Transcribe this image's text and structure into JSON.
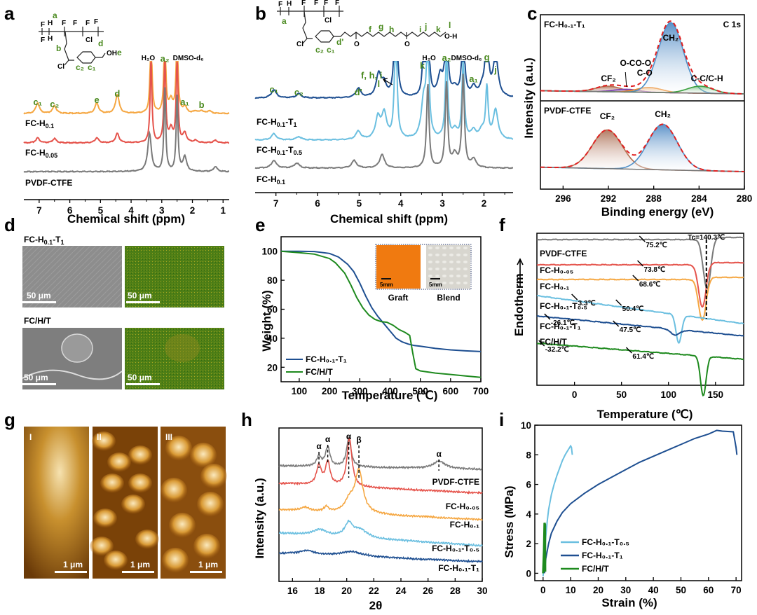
{
  "panels": {
    "a": {
      "letter": "a"
    },
    "b": {
      "letter": "b"
    },
    "c": {
      "letter": "c"
    },
    "d": {
      "letter": "d"
    },
    "e": {
      "letter": "e"
    },
    "f": {
      "letter": "f"
    },
    "g": {
      "letter": "g"
    },
    "h": {
      "letter": "h"
    },
    "i": {
      "letter": "i"
    }
  },
  "colors": {
    "gray": "#7a7a7a",
    "red": "#e5534b",
    "orange": "#f5a742",
    "lightblue": "#6bbfe0",
    "darkblue": "#1e4f91",
    "green": "#1e8a1e",
    "fit_red": "#e02020",
    "label_green": "#4a8a1f"
  },
  "chart_data": [
    {
      "id": "a",
      "type": "line",
      "title": "",
      "xlabel": "Chemical shift (ppm)",
      "ylabel": "",
      "xlim": [
        7.5,
        0.8
      ],
      "xticks": [
        "7",
        "6",
        "5",
        "4",
        "3",
        "2",
        "1"
      ],
      "series": [
        {
          "name": "FC-H0.1",
          "label": "FC-H",
          "sub": "0.1",
          "color": "orange",
          "peaks": [
            [
              7.05,
              0.25
            ],
            [
              6.5,
              0.18
            ],
            [
              5.12,
              0.25
            ],
            [
              4.45,
              0.45
            ],
            [
              3.35,
              2.0
            ],
            [
              2.9,
              2.0
            ],
            [
              2.7,
              0.3
            ],
            [
              2.5,
              2.0
            ],
            [
              2.25,
              0.15
            ],
            [
              1.9,
              0.05
            ],
            [
              1.7,
              0.06
            ],
            [
              1.45,
              0.06
            ]
          ]
        },
        {
          "name": "FC-H0.05",
          "label": "FC-H",
          "sub": "0.05",
          "color": "red",
          "peaks": [
            [
              7.05,
              0.12
            ],
            [
              6.5,
              0.1
            ],
            [
              5.12,
              0.12
            ],
            [
              4.45,
              0.22
            ],
            [
              3.35,
              2.0
            ],
            [
              2.9,
              2.0
            ],
            [
              2.7,
              0.3
            ],
            [
              2.5,
              2.0
            ],
            [
              2.25,
              0.22
            ],
            [
              1.9,
              0.05
            ],
            [
              1.25,
              0.06
            ]
          ]
        },
        {
          "name": "PVDF-CTFE",
          "label": "PVDF-CTFE",
          "sub": "",
          "color": "gray",
          "peaks": [
            [
              3.4,
              0.9
            ],
            [
              2.9,
              2.0
            ],
            [
              2.5,
              1.8
            ],
            [
              2.25,
              0.35
            ],
            [
              1.25,
              0.12
            ]
          ]
        }
      ],
      "annotations": [
        "c1",
        "c2",
        "e",
        "d",
        "H2O",
        "a2",
        "DMSO-d6",
        "a1",
        "b"
      ]
    },
    {
      "id": "b",
      "type": "line",
      "title": "",
      "xlabel": "Chemical shift (ppm)",
      "ylabel": "",
      "xlim": [
        7.5,
        1.3
      ],
      "xticks": [
        "7",
        "6",
        "5",
        "4",
        "3",
        "2"
      ],
      "series": [
        {
          "name": "FC-H0.1-T1",
          "label": "FC-H",
          "sub": "0.1",
          "tail": "-T",
          "tailsub": "1",
          "color": "darkblue",
          "peaks": [
            [
              7.05,
              0.2
            ],
            [
              6.45,
              0.1
            ],
            [
              5.02,
              0.22
            ],
            [
              4.53,
              0.55
            ],
            [
              4.4,
              0.3
            ],
            [
              4.12,
              3.0
            ],
            [
              3.45,
              1.1
            ],
            [
              3.35,
              2.2
            ],
            [
              3.05,
              0.5
            ],
            [
              2.9,
              2.2
            ],
            [
              2.7,
              0.2
            ],
            [
              2.5,
              2.0
            ],
            [
              2.25,
              0.22
            ],
            [
              2.05,
              0.2
            ],
            [
              1.93,
              2.2
            ],
            [
              1.72,
              1.0
            ]
          ]
        },
        {
          "name": "FC-H0.1-T0.5",
          "label": "FC-H",
          "sub": "0.1",
          "tail": "-T",
          "tailsub": "0.5",
          "color": "lightblue",
          "peaks": [
            [
              7.05,
              0.15
            ],
            [
              6.45,
              0.08
            ],
            [
              5.02,
              0.2
            ],
            [
              4.55,
              0.5
            ],
            [
              4.4,
              0.6
            ],
            [
              4.12,
              2.8
            ],
            [
              3.45,
              0.9
            ],
            [
              3.35,
              2.5
            ],
            [
              2.9,
              2.0
            ],
            [
              2.7,
              0.2
            ],
            [
              2.5,
              1.8
            ],
            [
              2.25,
              0.2
            ],
            [
              2.05,
              0.2
            ],
            [
              1.93,
              1.2
            ],
            [
              1.72,
              0.7
            ]
          ]
        },
        {
          "name": "FC-H0.1",
          "label": "FC-H",
          "sub": "0.1",
          "tail": "",
          "tailsub": "",
          "color": "gray",
          "peaks": [
            [
              7.05,
              0.18
            ],
            [
              6.5,
              0.12
            ],
            [
              5.12,
              0.18
            ],
            [
              4.45,
              0.32
            ],
            [
              3.35,
              2.0
            ],
            [
              2.9,
              2.0
            ],
            [
              2.7,
              0.3
            ],
            [
              2.5,
              2.2
            ],
            [
              2.25,
              0.2
            ]
          ]
        }
      ],
      "annotations": [
        "c1",
        "c2",
        "d'",
        "l",
        "f, h, i",
        "k",
        "H2O",
        "a2",
        "DMSO-d6",
        "g",
        "a1",
        "j"
      ]
    },
    {
      "id": "c",
      "type": "area",
      "title": "C 1s",
      "xlabel": "Binding energy (eV)",
      "ylabel": "Intensity (a.u.)",
      "xlim": [
        298,
        280
      ],
      "xticks": [
        "296",
        "292",
        "288",
        "284",
        "280"
      ],
      "subplots": [
        {
          "name": "FC-H0.1-T1",
          "components": [
            {
              "label": "CF2",
              "center": 292,
              "height": 0.08,
              "color": "#b57050"
            },
            {
              "label": "O-CO-O",
              "center": 290.4,
              "height": 0.04,
              "color": "#7a3fb0"
            },
            {
              "label": "C-O",
              "center": 288.4,
              "height": 0.07,
              "color": "#f08a24"
            },
            {
              "label": "CH2",
              "center": 286.5,
              "height": 1.0,
              "color": "#4f8fc8"
            },
            {
              "label": "C-C/C-H",
              "center": 283.9,
              "height": 0.1,
              "color": "#3aa040"
            }
          ]
        },
        {
          "name": "PVDF-CTFE",
          "components": [
            {
              "label": "CF2",
              "center": 292.1,
              "height": 0.85,
              "color": "#b57050"
            },
            {
              "label": "CH2",
              "center": 287.2,
              "height": 1.0,
              "color": "#4f8fc8"
            }
          ]
        }
      ]
    },
    {
      "id": "e",
      "type": "line",
      "title": "",
      "xlabel": "Temperature (℃)",
      "ylabel": "Weight (%)",
      "xlim": [
        40,
        700
      ],
      "ylim": [
        10,
        110
      ],
      "xticks": [
        100,
        200,
        300,
        400,
        500,
        600,
        700
      ],
      "yticks": [
        20,
        40,
        60,
        80,
        100
      ],
      "legend": "bottom-left",
      "series": [
        {
          "name": "FC-H0.1-T1",
          "color": "darkblue",
          "x": [
            40,
            100,
            150,
            200,
            230,
            260,
            280,
            300,
            320,
            340,
            360,
            380,
            400,
            420,
            440,
            460,
            480,
            500,
            550,
            600,
            650,
            700
          ],
          "y": [
            100,
            100,
            99.8,
            98.5,
            96,
            91,
            86,
            78,
            69,
            61,
            55,
            50,
            45,
            40,
            37.5,
            36,
            35,
            34.5,
            33,
            32,
            31.3,
            30.8
          ]
        },
        {
          "name": "FC/H/T",
          "color": "green",
          "x": [
            40,
            100,
            150,
            200,
            220,
            250,
            270,
            290,
            310,
            330,
            350,
            370,
            390,
            410,
            430,
            450,
            465,
            475,
            485,
            500,
            550,
            600,
            650,
            700
          ],
          "y": [
            100,
            99,
            98,
            95,
            92,
            85,
            77,
            68,
            61,
            56,
            53,
            51.5,
            51,
            49,
            46,
            44,
            42,
            30,
            19,
            17.5,
            16,
            15,
            14,
            13
          ]
        }
      ],
      "inset": {
        "labels": [
          "Graft",
          "Blend"
        ],
        "scale": "5mm"
      }
    },
    {
      "id": "f",
      "type": "line",
      "title": "",
      "xlabel": "Temperature (℃)",
      "ylabel": "Endotherm",
      "xlim": [
        -40,
        180
      ],
      "xticks": [
        0,
        50,
        100,
        150
      ],
      "tc_label": "Tc=140.3℃",
      "series": [
        {
          "name": "PVDF-CTFE",
          "color": "gray",
          "tg": [
            "75.2℃"
          ],
          "dip": [
            141,
            0.9,
            4
          ]
        },
        {
          "name": "FC-H0.05",
          "color": "red",
          "tg": [
            "73.8℃"
          ],
          "dip": [
            136,
            0.8,
            4
          ]
        },
        {
          "name": "FC-H0.1",
          "color": "orange",
          "tg": [
            "68.6℃"
          ],
          "dip": [
            136,
            0.95,
            4
          ]
        },
        {
          "name": "FC-H0.1-T0.5",
          "color": "lightblue",
          "tg": [
            "3.3℃",
            "50.4℃"
          ],
          "dip": [
            111,
            0.45,
            3
          ]
        },
        {
          "name": "FC-H0.1-T1",
          "color": "darkblue",
          "tg": [
            "-26.1℃",
            "47.5℃"
          ],
          "dip": [
            107,
            0.1,
            5
          ]
        },
        {
          "name": "FC/H/T",
          "color": "green",
          "tg": [
            "-32.2℃",
            "61.4℃"
          ],
          "dip": [
            137,
            0.9,
            3
          ]
        }
      ]
    },
    {
      "id": "h",
      "type": "line",
      "title": "",
      "xlabel": "2θ",
      "ylabel": "Intensity (a.u.)",
      "xlim": [
        15,
        30
      ],
      "xticks": [
        16,
        18,
        20,
        22,
        24,
        26,
        28,
        30
      ],
      "phase_marks": [
        {
          "label": "α",
          "x": 17.95
        },
        {
          "label": "α",
          "x": 18.6
        },
        {
          "label": "α",
          "x": 20.15
        },
        {
          "label": "β",
          "x": 20.9
        },
        {
          "label": "α",
          "x": 26.8
        }
      ],
      "series": [
        {
          "name": "PVDF-CTFE",
          "color": "gray",
          "peaks": [
            [
              17.95,
              0.25,
              0.2
            ],
            [
              18.6,
              0.5,
              0.2
            ],
            [
              20.15,
              0.75,
              0.2
            ],
            [
              26.8,
              0.2,
              0.5
            ]
          ]
        },
        {
          "name": "FC-H0.05",
          "color": "red",
          "peaks": [
            [
              17.95,
              0.5,
              0.22
            ],
            [
              18.6,
              0.6,
              0.2
            ],
            [
              20.2,
              1.25,
              0.22
            ]
          ]
        },
        {
          "name": "FC-H0.1",
          "color": "orange",
          "peaks": [
            [
              16.9,
              0.1,
              0.4
            ],
            [
              18.5,
              0.12,
              0.2
            ],
            [
              20.2,
              0.3,
              0.4
            ],
            [
              20.9,
              1.1,
              0.35
            ]
          ]
        },
        {
          "name": "FC-H0.1-T0.5",
          "color": "lightblue",
          "peaks": [
            [
              18.0,
              0.15,
              0.6
            ],
            [
              20.15,
              0.35,
              0.35
            ],
            [
              21.0,
              0.2,
              0.6
            ]
          ]
        },
        {
          "name": "FC-H0.1-T1",
          "color": "darkblue",
          "peaks": [
            [
              17.1,
              0.1,
              0.6
            ],
            [
              20.4,
              0.12,
              1.0
            ]
          ]
        }
      ]
    },
    {
      "id": "i",
      "type": "line",
      "title": "",
      "xlabel": "Strain (%)",
      "ylabel": "Stress (MPa)",
      "xlim": [
        -3,
        72
      ],
      "ylim": [
        -0.5,
        10
      ],
      "xticks": [
        0,
        10,
        20,
        30,
        40,
        50,
        60,
        70
      ],
      "yticks": [
        0,
        2,
        4,
        6,
        8,
        10
      ],
      "legend": "bottom-center",
      "series": [
        {
          "name": "FC-H0.1-T0.5",
          "color": "lightblue",
          "x": [
            0,
            0.5,
            1,
            1.5,
            2,
            3,
            4,
            5,
            6,
            7,
            8,
            9,
            10,
            10.3,
            10.6
          ],
          "y": [
            -0.2,
            1.0,
            2.5,
            3.5,
            4.3,
            5.3,
            6.0,
            6.6,
            7.1,
            7.6,
            8.0,
            8.3,
            8.6,
            8.5,
            8.0
          ]
        },
        {
          "name": "FC-H0.1-T1",
          "color": "darkblue",
          "x": [
            0.5,
            1,
            2,
            3,
            5,
            7,
            10,
            15,
            20,
            25,
            30,
            35,
            40,
            45,
            50,
            55,
            60,
            63,
            65,
            69,
            70,
            70.3
          ],
          "y": [
            0,
            1.0,
            2.0,
            2.7,
            3.5,
            4.1,
            4.7,
            5.4,
            6.0,
            6.5,
            7.0,
            7.5,
            7.9,
            8.3,
            8.7,
            9.1,
            9.4,
            9.65,
            9.6,
            9.55,
            8.5,
            8.0
          ]
        },
        {
          "name": "FC/H/T",
          "color": "green",
          "x": [
            0,
            0.3,
            0.5,
            0.7,
            0.8
          ],
          "y": [
            0,
            1.5,
            3.4,
            3.3,
            0.1
          ]
        }
      ]
    }
  ],
  "panel_a_structure": {
    "labels": [
      "a",
      "b",
      "c2",
      "c1",
      "d",
      "e"
    ],
    "atoms": [
      "F",
      "H",
      "Cl",
      "OH"
    ]
  },
  "panel_b_structure": {
    "labels": [
      "a",
      "c2",
      "c1",
      "d'",
      "f",
      "g",
      "h",
      "i",
      "j",
      "k",
      "l"
    ],
    "atoms": [
      "F",
      "H",
      "Cl",
      "O",
      "H"
    ]
  },
  "panel_d": {
    "rows": [
      {
        "label": "FC-H",
        "sub": "0.1",
        "tail": "-T",
        "tailsub": "1",
        "scale": "50 μm"
      },
      {
        "label": "FC/H/T",
        "sub": "",
        "tail": "",
        "tailsub": "",
        "scale": "50 μm"
      }
    ]
  },
  "panel_g": {
    "images": [
      {
        "roman": "I",
        "scale": "1 μm"
      },
      {
        "roman": "II",
        "scale": "1 μm"
      },
      {
        "roman": "III",
        "scale": "1 μm"
      }
    ]
  },
  "texts": {
    "nmr_xlabel": "Chemical shift (ppm)",
    "xps_ylabel": "Intensity (a.u.)",
    "xps_xlabel": "Binding energy (eV)",
    "xps_title": "C 1s",
    "tga_xlabel": "Temperature (℃)",
    "tga_ylabel": "Weight (%)",
    "dsc_xlabel": "Temperature (℃)",
    "dsc_ylabel": "Endotherm",
    "xrd_xlabel": "2θ",
    "xrd_ylabel": "Intensity (a.u.)",
    "ss_xlabel": "Strain (%)",
    "ss_ylabel": "Stress (MPa)",
    "graft": "Graft",
    "blend": "Blend",
    "mm5": "5mm",
    "tc": "Tc=140.3℃"
  }
}
